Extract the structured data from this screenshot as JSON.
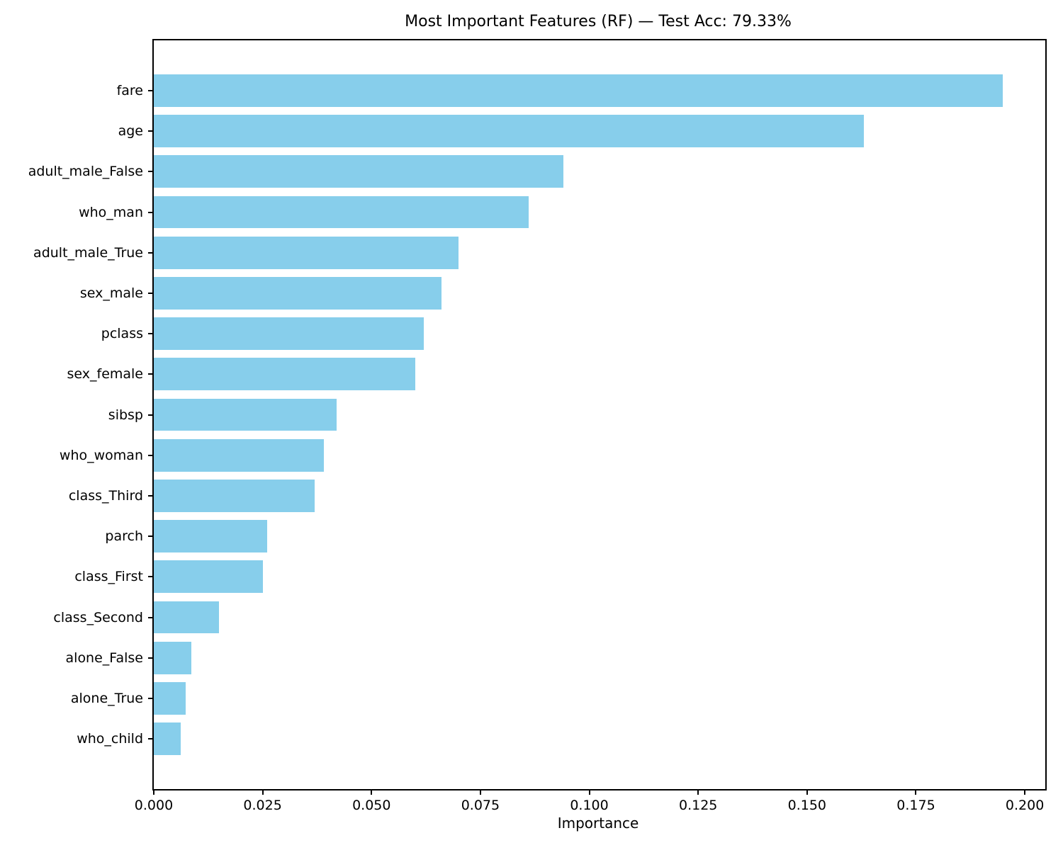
{
  "chart_data": {
    "type": "bar",
    "orientation": "horizontal",
    "title": "Most Important Features (RF) — Test Acc: 79.33%",
    "xlabel": "Importance",
    "ylabel": "",
    "categories": [
      "fare",
      "age",
      "adult_male_False",
      "who_man",
      "adult_male_True",
      "sex_male",
      "pclass",
      "sex_female",
      "sibsp",
      "who_woman",
      "class_Third",
      "parch",
      "class_First",
      "class_Second",
      "alone_False",
      "alone_True",
      "who_child"
    ],
    "values": [
      0.195,
      0.163,
      0.094,
      0.086,
      0.07,
      0.066,
      0.062,
      0.06,
      0.042,
      0.039,
      0.037,
      0.026,
      0.025,
      0.015,
      0.0086,
      0.0073,
      0.0062
    ],
    "xlim": [
      0,
      0.2047
    ],
    "xticks": [
      0.0,
      0.025,
      0.05,
      0.075,
      0.1,
      0.125,
      0.15,
      0.175,
      0.2
    ],
    "xtick_labels": [
      "0.000",
      "0.025",
      "0.050",
      "0.075",
      "0.100",
      "0.125",
      "0.150",
      "0.175",
      "0.200"
    ],
    "bar_color": "#87CEEB",
    "grid": false,
    "legend_position": "none"
  }
}
